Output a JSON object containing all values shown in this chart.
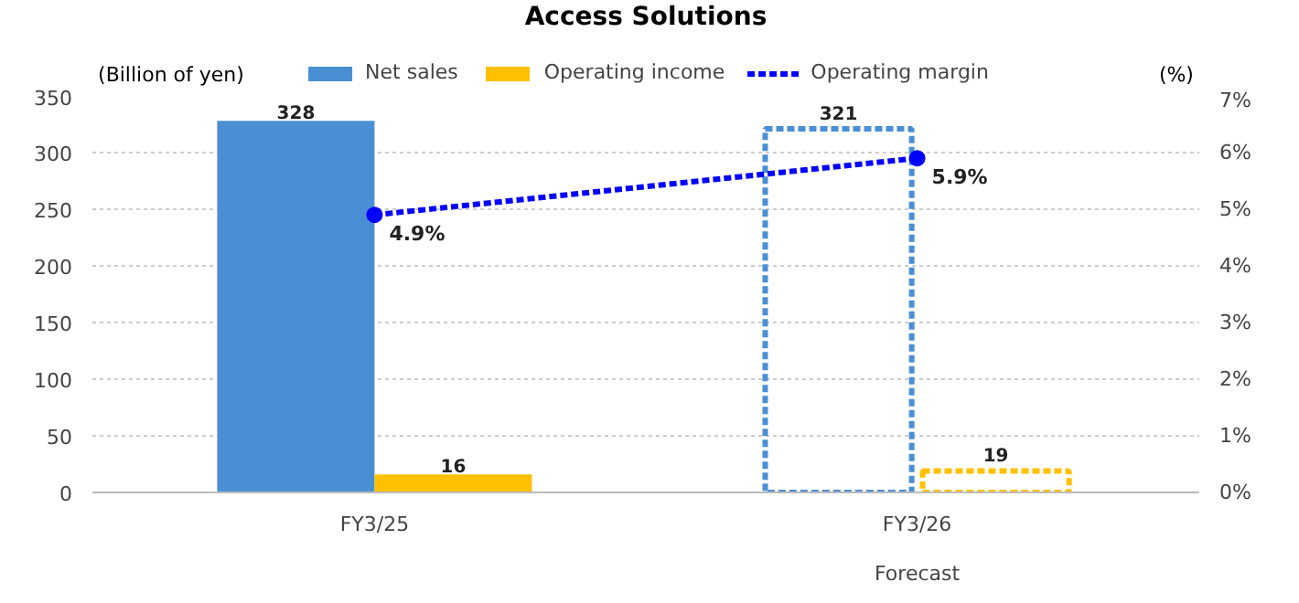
{
  "chart_data": {
    "type": "bar",
    "title": "Access Solutions",
    "ylabel": "(Billion of yen)",
    "y2label": "(%)",
    "categories": [
      "FY3/25",
      "FY3/26"
    ],
    "series": [
      {
        "name": "Net sales",
        "color": "#4a8fd4",
        "values": [
          328,
          null
        ],
        "value_labels": [
          "328",
          null
        ]
      },
      {
        "name": "Operating income",
        "color": "#ffc000",
        "values": [
          16,
          null
        ],
        "value_labels": [
          "16",
          null
        ]
      },
      {
        "color": "#4a8fd4",
        "values": [
          null,
          321
        ],
        "value_labels": [
          null,
          "321"
        ],
        "line_style": "dashed"
      },
      {
        "color": "#ffc000",
        "values": [
          null,
          19
        ],
        "value_labels": [
          null,
          "19"
        ],
        "line_style": "dashed"
      },
      {
        "name": "Operating margin",
        "type": "line",
        "axis": "y2",
        "color": "#0000ff",
        "values": [
          4.9,
          5.9
        ],
        "value_labels": [
          "4.9%",
          "5.9%"
        ],
        "marker": "circle",
        "line_style": "dashed"
      }
    ],
    "annotations": [
      "Forecast"
    ],
    "ylim": [
      0,
      350
    ],
    "yticks": [
      0,
      50,
      100,
      150,
      200,
      250,
      300,
      350
    ],
    "y2lim": [
      0,
      7
    ],
    "y2ticks": [
      {
        "value": 0,
        "label": "0%"
      },
      {
        "value": 1,
        "label": "1%"
      },
      {
        "value": 2,
        "label": "2%"
      },
      {
        "value": 3,
        "label": "3%"
      },
      {
        "value": 4,
        "label": "4%"
      },
      {
        "value": 5,
        "label": "5%"
      },
      {
        "value": 6,
        "label": "6%"
      },
      {
        "value": 7,
        "label": "7%"
      }
    ],
    "grid": "y",
    "legend": "top"
  }
}
